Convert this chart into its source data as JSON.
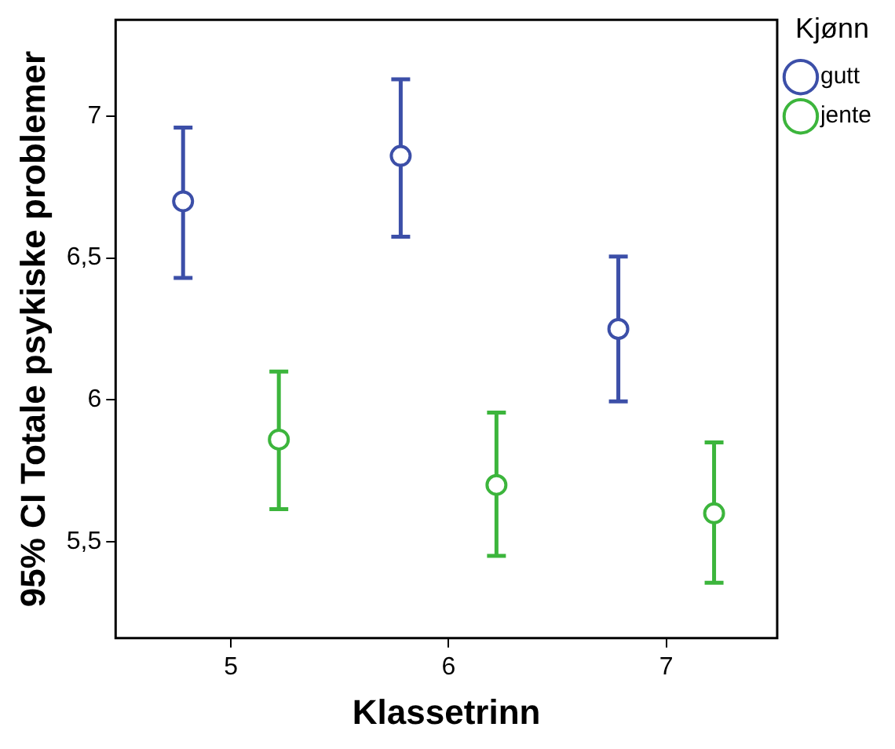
{
  "chart_data": {
    "type": "scatter",
    "xlabel": "Klassetrinn",
    "ylabel": "95% CI Totale psykiske problemer",
    "legend_title": "Kjønn",
    "categories": [
      "5",
      "6",
      "7"
    ],
    "series": [
      {
        "name": "gutt",
        "color": "#3c4fa8",
        "values": [
          6.7,
          6.86,
          6.25
        ],
        "errors": [
          [
            6.43,
            6.96
          ],
          [
            6.575,
            7.13
          ],
          [
            5.995,
            6.505
          ]
        ]
      },
      {
        "name": "jente",
        "color": "#3cb53c",
        "values": [
          5.86,
          5.7,
          5.6
        ],
        "errors": [
          [
            5.615,
            6.1
          ],
          [
            5.45,
            5.955
          ],
          [
            5.355,
            5.85
          ]
        ]
      }
    ],
    "ylim": [
      5.16,
      7.34
    ],
    "yticks": [
      {
        "value": 5.5,
        "label": "5,5"
      },
      {
        "value": 6,
        "label": "6"
      },
      {
        "value": 6.5,
        "label": "6,5"
      },
      {
        "value": 7,
        "label": "7"
      }
    ],
    "grid": false,
    "legend": "top right",
    "marker": "circle"
  }
}
